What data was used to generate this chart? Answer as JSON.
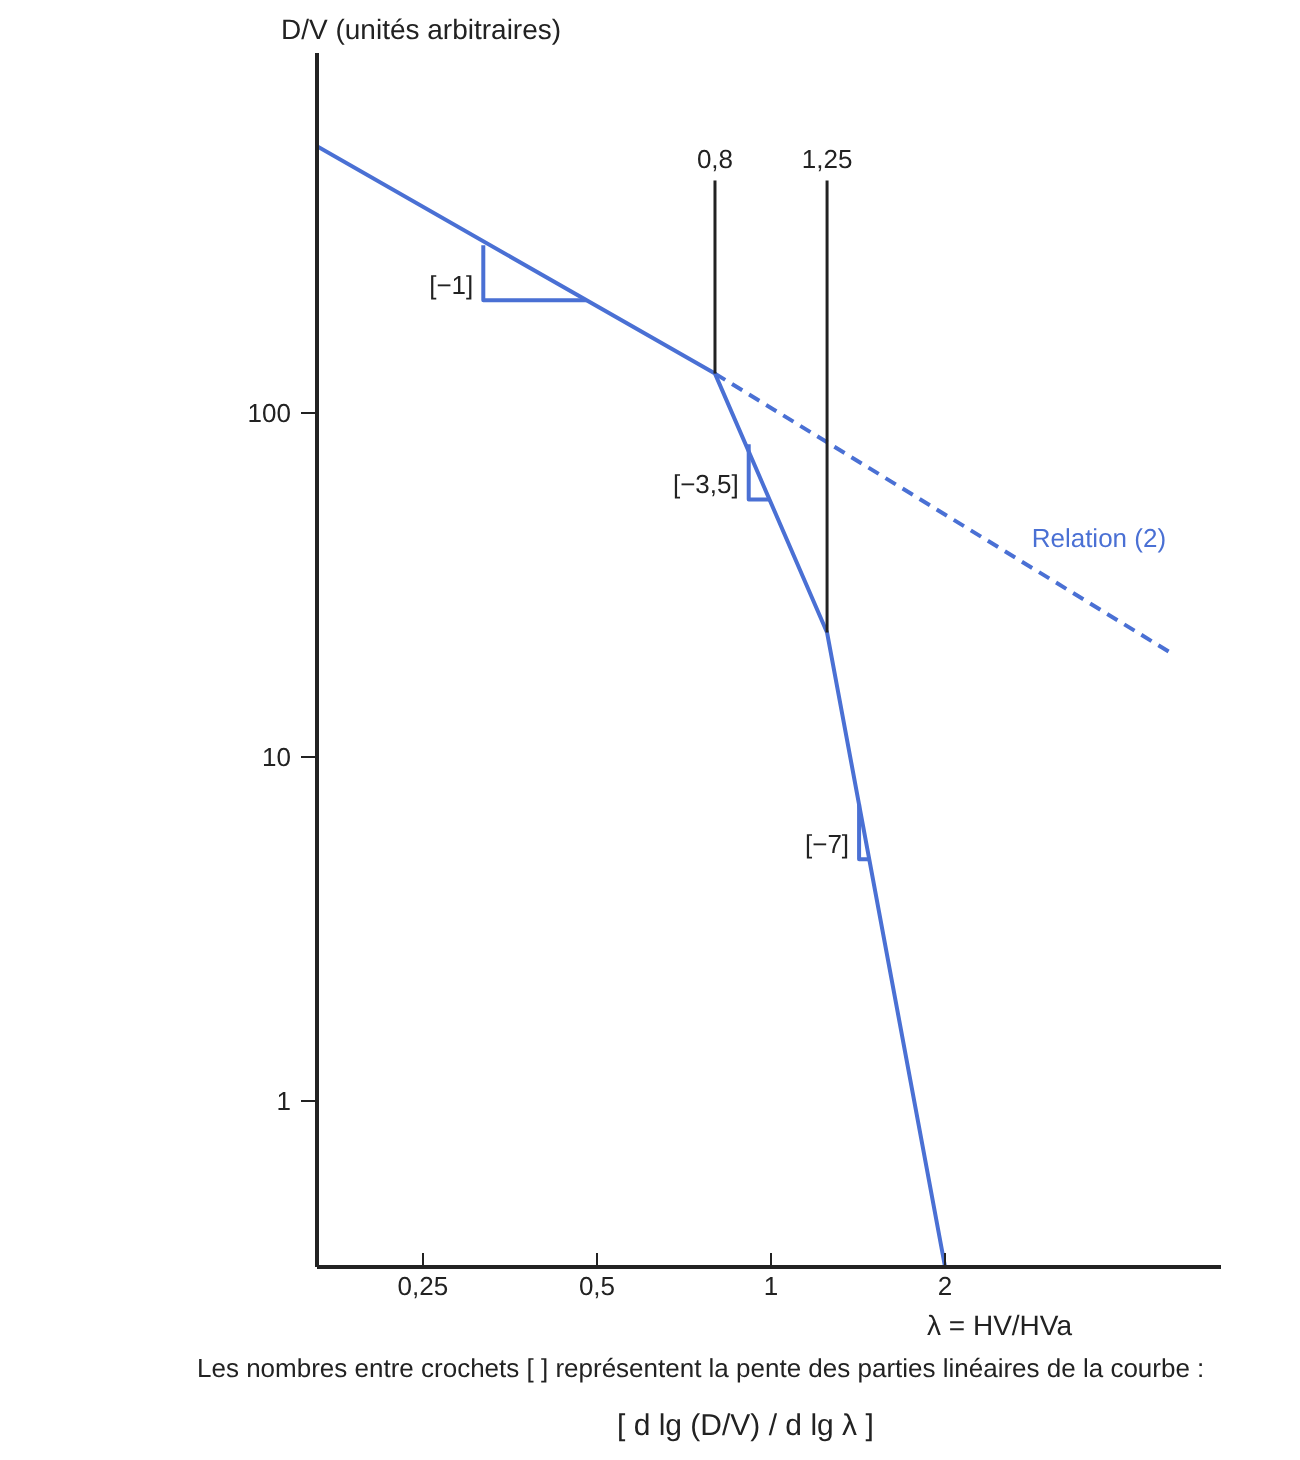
{
  "chart_data": {
    "type": "line",
    "ylabel": "D/V (unités arbitraires)",
    "xlabel": "λ = HV/HVa",
    "log": "xy",
    "xlim": [
      0.164,
      6
    ],
    "ylim": [
      0.33,
      1110
    ],
    "xticks": [
      {
        "value": 0.25,
        "label": "0,25"
      },
      {
        "value": 0.5,
        "label": "0,5"
      },
      1,
      2
    ],
    "yticks": [
      1,
      10,
      100
    ],
    "grid": false,
    "series": [
      {
        "color": "#4a70d4",
        "line_style": "solid",
        "x": [
          0.164,
          0.8,
          1.25,
          2
        ],
        "values": [
          595,
          130,
          23,
          0.33
        ]
      },
      {
        "name": "Relation (2)",
        "color": "#4a70d4",
        "line_style": "dashed",
        "x": [
          0.8,
          4.93
        ],
        "values": [
          130,
          20
        ]
      }
    ],
    "ref_lines": [
      {
        "axis": "x",
        "value": 0.8,
        "label": "0,8",
        "color": "#222222"
      },
      {
        "axis": "x",
        "value": 1.25,
        "label": "1,25",
        "color": "#222222"
      }
    ],
    "annotations": [
      {
        "text": "[−1]",
        "x": 0.318,
        "y": 307
      },
      {
        "text": "[−3,5]",
        "x": 0.915,
        "y": 81
      },
      {
        "text": "[−7]",
        "x": 1.42,
        "y": 7.3
      },
      "Les nombres entre crochets [ ] représentent la pente des parties linéaires de la courbe :",
      "[ d lg (D/V) / d lg λ ]"
    ]
  }
}
